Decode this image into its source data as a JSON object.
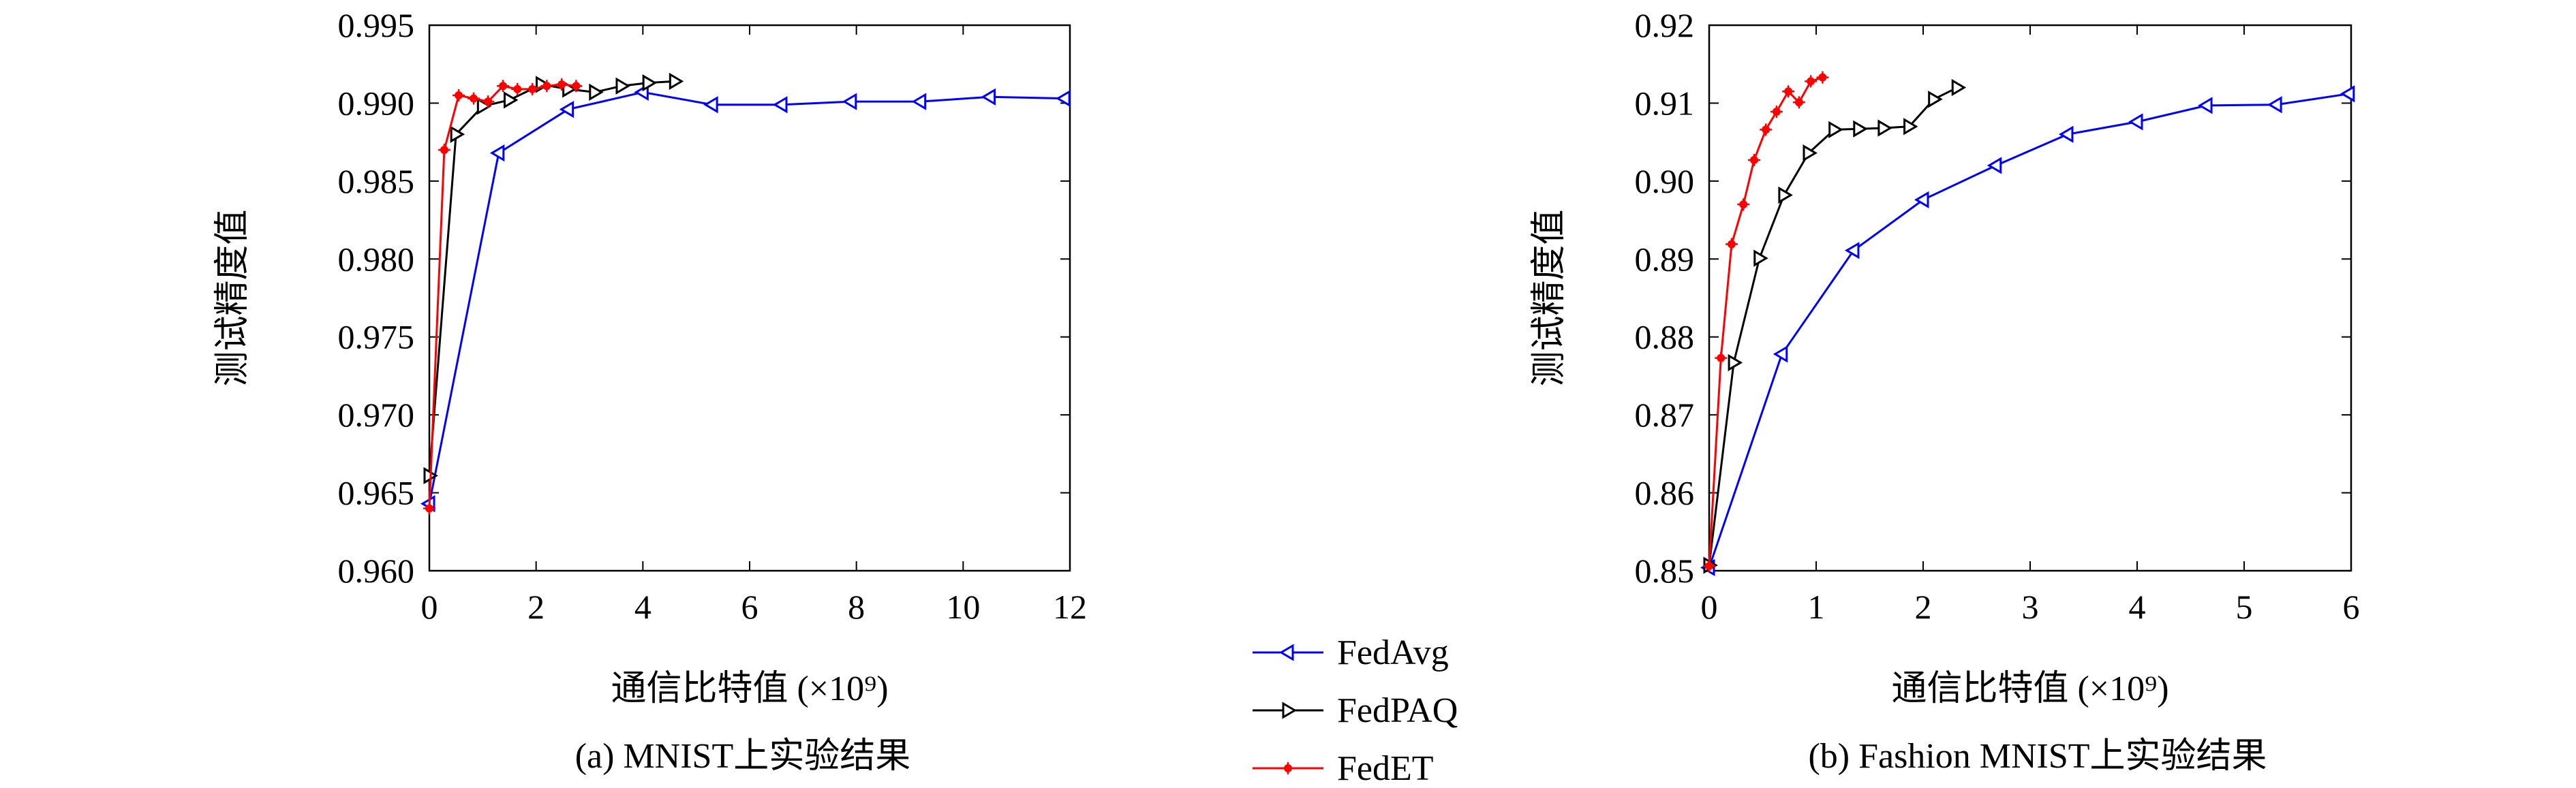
{
  "legend": {
    "entries": [
      {
        "label": "FedAvg",
        "color": "#0000ff",
        "marker": "triangle-left"
      },
      {
        "label": "FedPAQ",
        "color": "#000000",
        "marker": "triangle-right"
      },
      {
        "label": "FedET",
        "color": "#ff0000",
        "marker": "asterisk"
      }
    ]
  },
  "chart_data": [
    {
      "type": "line",
      "caption": "(a) MNIST上实验结果",
      "xlabel": "通信比特值 (×10⁹)",
      "ylabel": "测试精度值",
      "xlim": [
        0,
        12
      ],
      "ylim": [
        0.96,
        0.995
      ],
      "xticks": [
        "0",
        "2",
        "4",
        "6",
        "8",
        "10",
        "12"
      ],
      "yticks": [
        "0.960",
        "0.965",
        "0.970",
        "0.975",
        "0.980",
        "0.985",
        "0.990",
        "0.995"
      ],
      "xtick_values": [
        0,
        2,
        4,
        6,
        8,
        10,
        12
      ],
      "ytick_values": [
        0.96,
        0.965,
        0.97,
        0.975,
        0.98,
        0.985,
        0.99,
        0.995
      ],
      "grid": false,
      "series": [
        {
          "name": "FedAvg",
          "x": [
            0,
            1.3,
            2.6,
            4.0,
            5.3,
            6.6,
            7.9,
            9.2,
            10.5,
            11.9
          ],
          "y": [
            0.9643,
            0.9868,
            0.9896,
            0.9907,
            0.9899,
            0.9899,
            0.9901,
            0.9901,
            0.9904,
            0.9903
          ]
        },
        {
          "name": "FedPAQ",
          "x": [
            0,
            0.5,
            1.0,
            1.5,
            2.1,
            2.6,
            3.1,
            3.6,
            4.1,
            4.6
          ],
          "y": [
            0.9661,
            0.988,
            0.9898,
            0.9902,
            0.9912,
            0.9909,
            0.9907,
            0.9911,
            0.9913,
            0.9914
          ]
        },
        {
          "name": "FedET",
          "x": [
            0,
            0.28,
            0.55,
            0.83,
            1.1,
            1.38,
            1.65,
            1.93,
            2.2,
            2.48,
            2.75
          ],
          "y": [
            0.964,
            0.987,
            0.9905,
            0.9903,
            0.9901,
            0.9911,
            0.9909,
            0.9909,
            0.9911,
            0.9912,
            0.9911
          ]
        }
      ]
    },
    {
      "type": "line",
      "caption": "(b) Fashion MNIST上实验结果",
      "xlabel": "通信比特值 (×10⁹)",
      "ylabel": "测试精度值",
      "xlim": [
        0,
        6
      ],
      "ylim": [
        0.85,
        0.92
      ],
      "xticks": [
        "0",
        "1",
        "2",
        "3",
        "4",
        "5",
        "6"
      ],
      "yticks": [
        "0.85",
        "0.86",
        "0.87",
        "0.88",
        "0.89",
        "0.90",
        "0.91",
        "0.92"
      ],
      "xtick_values": [
        0,
        1,
        2,
        3,
        4,
        5,
        6
      ],
      "ytick_values": [
        0.85,
        0.86,
        0.87,
        0.88,
        0.89,
        0.9,
        0.91,
        0.92
      ],
      "grid": false,
      "series": [
        {
          "name": "FedAvg",
          "x": [
            0,
            0.68,
            1.35,
            2.0,
            2.68,
            3.35,
            4.0,
            4.65,
            5.3,
            5.98
          ],
          "y": [
            0.8504,
            0.8778,
            0.8911,
            0.8976,
            0.902,
            0.906,
            0.9076,
            0.9097,
            0.9098,
            0.9112
          ]
        },
        {
          "name": "FedPAQ",
          "x": [
            0,
            0.23,
            0.47,
            0.7,
            0.93,
            1.17,
            1.4,
            1.63,
            1.87,
            2.1,
            2.32
          ],
          "y": [
            0.8507,
            0.8767,
            0.8901,
            0.8982,
            0.9036,
            0.9066,
            0.9067,
            0.9068,
            0.907,
            0.9105,
            0.912
          ]
        },
        {
          "name": "FedET",
          "x": [
            0,
            0.11,
            0.21,
            0.32,
            0.42,
            0.53,
            0.63,
            0.74,
            0.84,
            0.95,
            1.06
          ],
          "y": [
            0.8506,
            0.8773,
            0.8919,
            0.897,
            0.9027,
            0.9066,
            0.9089,
            0.9115,
            0.9101,
            0.9128,
            0.9133
          ]
        }
      ]
    }
  ]
}
